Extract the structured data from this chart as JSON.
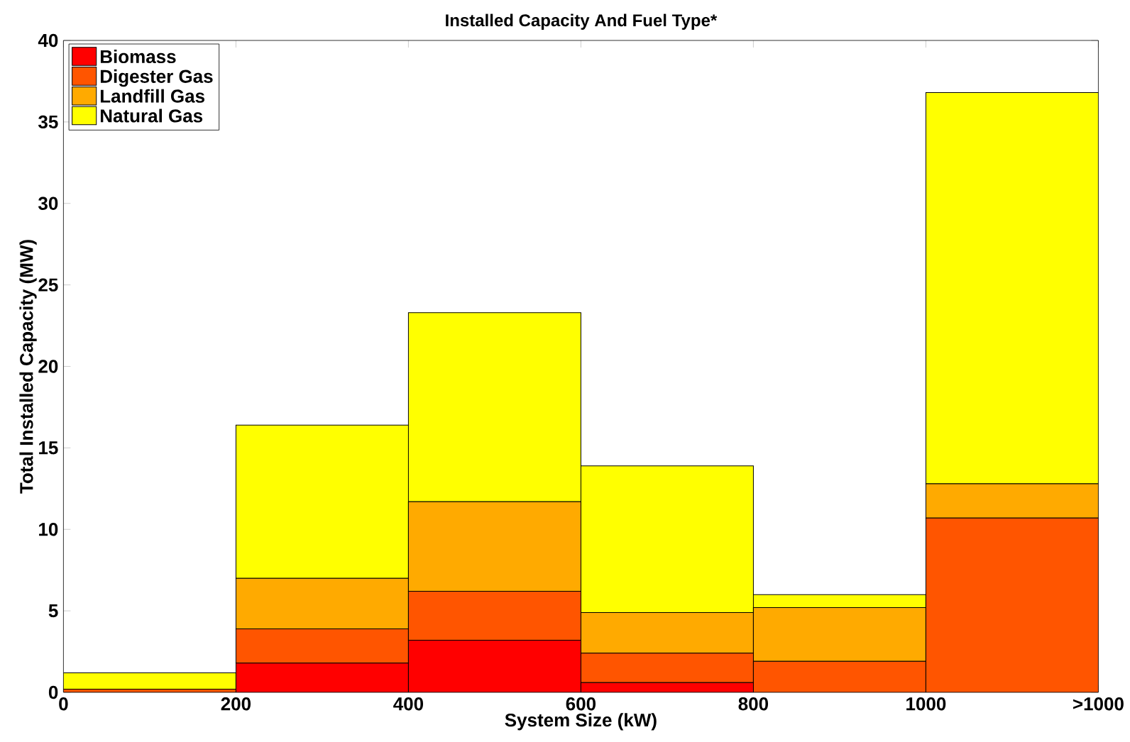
{
  "chart_data": {
    "type": "bar",
    "stacked": true,
    "title": "Installed Capacity And Fuel Type*",
    "xlabel": "System Size (kW)",
    "ylabel": "Total Installed Capacity (MW)",
    "x": [
      100,
      300,
      500,
      700,
      900,
      1100
    ],
    "series": [
      {
        "name": "Biomass",
        "color": "#ff0000",
        "values": [
          0,
          1.8,
          3.2,
          0.6,
          0,
          0
        ]
      },
      {
        "name": "Digester Gas",
        "color": "#ff5500",
        "values": [
          0.2,
          2.1,
          3.0,
          1.8,
          1.9,
          10.7
        ]
      },
      {
        "name": "Landfill Gas",
        "color": "#ffaa00",
        "values": [
          0,
          3.1,
          5.5,
          2.5,
          3.3,
          2.1
        ]
      },
      {
        "name": "Natural Gas",
        "color": "#ffff00",
        "values": [
          1.0,
          9.4,
          11.6,
          9.0,
          0.8,
          24.0
        ]
      }
    ],
    "xlim": [
      0,
      1200
    ],
    "xticks": [
      0,
      200,
      400,
      600,
      800,
      1000,
      {
        "value": 1200,
        "label": ">1000"
      }
    ],
    "ylim": [
      0,
      40
    ],
    "yticks": [
      0,
      5,
      10,
      15,
      20,
      25,
      30,
      35,
      40
    ],
    "legend": "top left",
    "grid": false
  }
}
